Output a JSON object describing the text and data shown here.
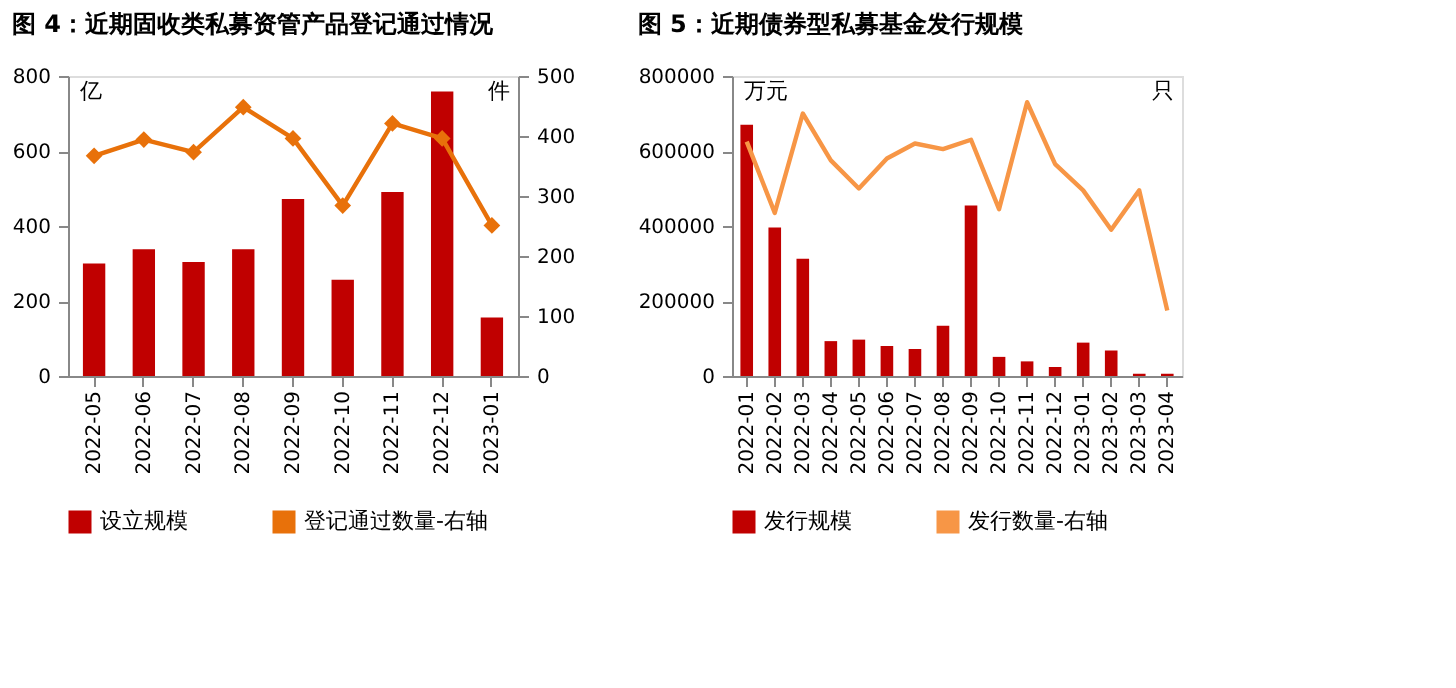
{
  "chart_data": [
    {
      "type": "bar",
      "title": "图 4：近期固收类私募资管产品登记通过情况",
      "categories": [
        "2022-05",
        "2022-06",
        "2022-07",
        "2022-08",
        "2022-09",
        "2022-10",
        "2022-11",
        "2022-12",
        "2023-01"
      ],
      "series": [
        {
          "name": "设立规模",
          "color": "#c00000",
          "values": [
            300,
            338,
            304,
            338,
            472,
            257,
            491,
            759,
            156
          ]
        },
        {
          "name": "登记通过数量-右轴",
          "type": "line",
          "axis": "y2",
          "color": "#e8710a",
          "values": [
            367,
            394,
            373,
            448,
            396,
            284,
            421,
            396,
            251
          ]
        }
      ],
      "ylim": [
        0,
        800
      ],
      "yticks": [
        0,
        200,
        400,
        600,
        800
      ],
      "y2lim": [
        0,
        500
      ],
      "y2ticks": [
        0,
        100,
        200,
        300,
        400,
        500
      ],
      "annotations": [
        "亿",
        "件"
      ],
      "marker": "diamond",
      "line_style": "solid",
      "legend": "bottom",
      "grid": false
    },
    {
      "type": "bar",
      "title": "图 5：近期债券型私募基金发行规模",
      "categories": [
        "2022-01",
        "2022-02",
        "2022-03",
        "2022-04",
        "2022-05",
        "2022-06",
        "2022-07",
        "2022-08",
        "2022-09",
        "2022-10",
        "2022-11",
        "2022-12",
        "2023-01",
        "2023-02",
        "2023-03",
        "2023-04"
      ],
      "series": [
        {
          "name": "发行规模",
          "color": "#c00000",
          "values": [
            670000,
            396000,
            313000,
            93000,
            97000,
            80000,
            72000,
            134000,
            455000,
            51000,
            39000,
            24000,
            89000,
            68000,
            6000,
            6000
          ]
        },
        {
          "name": "发行数量-右轴",
          "type": "line",
          "color": "#f79646",
          "values": [
            625000,
            435000,
            700000,
            575000,
            500000,
            580000,
            620000,
            605000,
            630000,
            445000,
            730000,
            565000,
            495000,
            390000,
            495000,
            175000
          ]
        }
      ],
      "ylim": [
        0,
        800000
      ],
      "yticks": [
        0,
        200000,
        400000,
        600000,
        800000
      ],
      "annotations": [
        "万元",
        "只"
      ],
      "marker": "none",
      "line_style": "solid",
      "legend": "bottom",
      "grid": false
    }
  ]
}
